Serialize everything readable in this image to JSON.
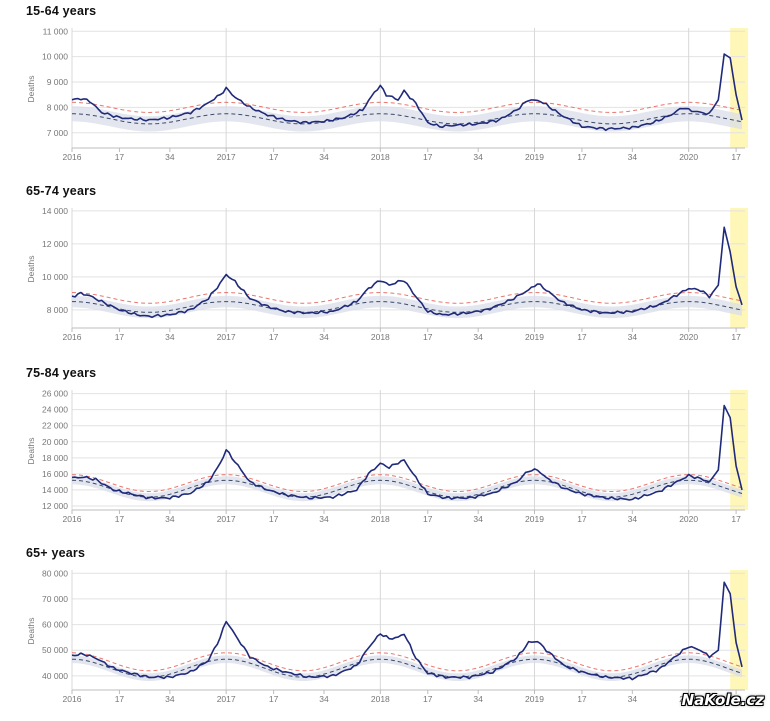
{
  "watermark": "NaKole.cz",
  "colors": {
    "observed": "#1f2a7a",
    "baseline": "#3b4a6b",
    "threshold": "#e8776f",
    "band": "#d9dde8",
    "highlight": "#fff7b8",
    "grid": "#e2e2e2"
  },
  "x_axis": {
    "start": "2016-W01",
    "end": "2020-W18",
    "ticks": [
      {
        "week": 0,
        "label": "2016"
      },
      {
        "week": 16,
        "label": "17"
      },
      {
        "week": 33,
        "label": "34"
      },
      {
        "week": 52,
        "label": "2017"
      },
      {
        "week": 68,
        "label": "17"
      },
      {
        "week": 85,
        "label": "34"
      },
      {
        "week": 104,
        "label": "2018"
      },
      {
        "week": 120,
        "label": "17"
      },
      {
        "week": 137,
        "label": "34"
      },
      {
        "week": 156,
        "label": "2019"
      },
      {
        "week": 172,
        "label": "17"
      },
      {
        "week": 189,
        "label": "34"
      },
      {
        "week": 208,
        "label": "2020"
      },
      {
        "week": 224,
        "label": "17"
      }
    ],
    "highlight_weeks": [
      222,
      226
    ]
  },
  "chart_data": [
    {
      "type": "line",
      "title": "15-64 years",
      "ylabel": "Deaths",
      "ylim": [
        6400,
        11050
      ],
      "yticks": [
        {
          "v": 7000,
          "label": "7 000"
        },
        {
          "v": 8000,
          "label": "8 000"
        },
        {
          "v": 9000,
          "label": "9 000"
        },
        {
          "v": 10000,
          "label": "10 000"
        },
        {
          "v": 11000,
          "label": "11 000"
        }
      ],
      "baseline": {
        "winter": 7750,
        "summer": 7350
      },
      "threshold_offset": 450,
      "band_halfwidth": 300,
      "observed_keypoints": [
        [
          0,
          8300
        ],
        [
          3,
          8350
        ],
        [
          6,
          8250
        ],
        [
          10,
          7800
        ],
        [
          16,
          7600
        ],
        [
          20,
          7550
        ],
        [
          26,
          7500
        ],
        [
          33,
          7600
        ],
        [
          40,
          7800
        ],
        [
          45,
          8100
        ],
        [
          50,
          8500
        ],
        [
          52,
          8750
        ],
        [
          55,
          8400
        ],
        [
          60,
          8000
        ],
        [
          66,
          7700
        ],
        [
          72,
          7500
        ],
        [
          78,
          7400
        ],
        [
          85,
          7450
        ],
        [
          92,
          7600
        ],
        [
          98,
          7900
        ],
        [
          102,
          8600
        ],
        [
          104,
          8850
        ],
        [
          106,
          8500
        ],
        [
          110,
          8300
        ],
        [
          112,
          8650
        ],
        [
          116,
          8150
        ],
        [
          120,
          7400
        ],
        [
          124,
          7250
        ],
        [
          130,
          7300
        ],
        [
          137,
          7350
        ],
        [
          144,
          7500
        ],
        [
          150,
          7900
        ],
        [
          154,
          8300
        ],
        [
          158,
          8250
        ],
        [
          160,
          8100
        ],
        [
          165,
          7700
        ],
        [
          172,
          7250
        ],
        [
          180,
          7150
        ],
        [
          189,
          7200
        ],
        [
          196,
          7400
        ],
        [
          202,
          7700
        ],
        [
          206,
          8000
        ],
        [
          208,
          7900
        ],
        [
          212,
          7800
        ],
        [
          215,
          7750
        ],
        [
          218,
          8300
        ],
        [
          220,
          10100
        ],
        [
          222,
          9950
        ],
        [
          224,
          8500
        ],
        [
          226,
          7500
        ]
      ]
    },
    {
      "type": "line",
      "title": "65-74 years",
      "ylabel": "Deaths",
      "ylim": [
        6900,
        14050
      ],
      "yticks": [
        {
          "v": 8000,
          "label": "8 000"
        },
        {
          "v": 10000,
          "label": "10 000"
        },
        {
          "v": 12000,
          "label": "12 000"
        },
        {
          "v": 14000,
          "label": "14 000"
        }
      ],
      "baseline": {
        "winter": 8500,
        "summer": 7850
      },
      "threshold_offset": 550,
      "band_halfwidth": 350,
      "observed_keypoints": [
        [
          0,
          8800
        ],
        [
          3,
          9000
        ],
        [
          6,
          8850
        ],
        [
          10,
          8500
        ],
        [
          16,
          8000
        ],
        [
          22,
          7700
        ],
        [
          26,
          7600
        ],
        [
          33,
          7700
        ],
        [
          40,
          8000
        ],
        [
          46,
          8700
        ],
        [
          50,
          9600
        ],
        [
          52,
          10150
        ],
        [
          55,
          9700
        ],
        [
          60,
          8700
        ],
        [
          66,
          8200
        ],
        [
          72,
          7900
        ],
        [
          80,
          7800
        ],
        [
          88,
          7900
        ],
        [
          96,
          8500
        ],
        [
          100,
          9300
        ],
        [
          104,
          9800
        ],
        [
          107,
          9500
        ],
        [
          110,
          9700
        ],
        [
          112,
          9800
        ],
        [
          116,
          8800
        ],
        [
          120,
          7900
        ],
        [
          125,
          7700
        ],
        [
          133,
          7800
        ],
        [
          140,
          8000
        ],
        [
          148,
          8600
        ],
        [
          154,
          9200
        ],
        [
          157,
          9600
        ],
        [
          160,
          9200
        ],
        [
          165,
          8500
        ],
        [
          172,
          8000
        ],
        [
          180,
          7800
        ],
        [
          189,
          7900
        ],
        [
          198,
          8300
        ],
        [
          204,
          8900
        ],
        [
          208,
          9300
        ],
        [
          212,
          9200
        ],
        [
          215,
          8800
        ],
        [
          218,
          9500
        ],
        [
          220,
          13000
        ],
        [
          222,
          11500
        ],
        [
          224,
          9400
        ],
        [
          226,
          8300
        ]
      ]
    },
    {
      "type": "line",
      "title": "75-84 years",
      "ylabel": "Deaths",
      "ylim": [
        11500,
        26200
      ],
      "yticks": [
        {
          "v": 12000,
          "label": "12 000"
        },
        {
          "v": 14000,
          "label": "14 000"
        },
        {
          "v": 16000,
          "label": "16 000"
        },
        {
          "v": 18000,
          "label": "18 000"
        },
        {
          "v": 20000,
          "label": "20 000"
        },
        {
          "v": 22000,
          "label": "22 000"
        },
        {
          "v": 24000,
          "label": "24 000"
        },
        {
          "v": 26000,
          "label": "26 000"
        }
      ],
      "baseline": {
        "winter": 15200,
        "summer": 13100
      },
      "threshold_offset": 700,
      "band_halfwidth": 500,
      "observed_keypoints": [
        [
          0,
          15500
        ],
        [
          4,
          15600
        ],
        [
          8,
          15300
        ],
        [
          14,
          14000
        ],
        [
          20,
          13500
        ],
        [
          26,
          13000
        ],
        [
          33,
          13000
        ],
        [
          40,
          13600
        ],
        [
          46,
          15000
        ],
        [
          50,
          17300
        ],
        [
          52,
          19000
        ],
        [
          55,
          17500
        ],
        [
          60,
          15000
        ],
        [
          66,
          14000
        ],
        [
          72,
          13400
        ],
        [
          80,
          13000
        ],
        [
          88,
          13100
        ],
        [
          96,
          14000
        ],
        [
          100,
          16000
        ],
        [
          104,
          17300
        ],
        [
          107,
          16800
        ],
        [
          110,
          17400
        ],
        [
          112,
          17700
        ],
        [
          116,
          15500
        ],
        [
          120,
          13500
        ],
        [
          126,
          13000
        ],
        [
          134,
          13000
        ],
        [
          142,
          13600
        ],
        [
          150,
          15000
        ],
        [
          154,
          16400
        ],
        [
          157,
          16500
        ],
        [
          160,
          15500
        ],
        [
          166,
          14200
        ],
        [
          172,
          13500
        ],
        [
          180,
          13000
        ],
        [
          189,
          12800
        ],
        [
          198,
          13800
        ],
        [
          204,
          15000
        ],
        [
          208,
          15800
        ],
        [
          212,
          15400
        ],
        [
          215,
          15000
        ],
        [
          218,
          16500
        ],
        [
          220,
          24500
        ],
        [
          222,
          23000
        ],
        [
          224,
          17000
        ],
        [
          226,
          14000
        ]
      ]
    },
    {
      "type": "line",
      "title": "65+ years",
      "ylabel": "Deaths",
      "ylim": [
        34500,
        80500
      ],
      "yticks": [
        {
          "v": 40000,
          "label": "40 000"
        },
        {
          "v": 50000,
          "label": "50 000"
        },
        {
          "v": 60000,
          "label": "60 000"
        },
        {
          "v": 70000,
          "label": "70 000"
        },
        {
          "v": 80000,
          "label": "80 000"
        }
      ],
      "baseline": {
        "winter": 46500,
        "summer": 39500
      },
      "threshold_offset": 2500,
      "band_halfwidth": 1500,
      "observed_keypoints": [
        [
          0,
          48000
        ],
        [
          4,
          48500
        ],
        [
          8,
          47000
        ],
        [
          14,
          43000
        ],
        [
          20,
          41000
        ],
        [
          26,
          39500
        ],
        [
          33,
          39500
        ],
        [
          40,
          41500
        ],
        [
          46,
          46000
        ],
        [
          50,
          55000
        ],
        [
          52,
          61500
        ],
        [
          55,
          56000
        ],
        [
          60,
          47500
        ],
        [
          66,
          43500
        ],
        [
          72,
          41500
        ],
        [
          80,
          39500
        ],
        [
          88,
          40000
        ],
        [
          96,
          44000
        ],
        [
          100,
          51000
        ],
        [
          104,
          56500
        ],
        [
          107,
          54500
        ],
        [
          110,
          55000
        ],
        [
          112,
          56500
        ],
        [
          116,
          47000
        ],
        [
          120,
          41000
        ],
        [
          126,
          39500
        ],
        [
          134,
          39500
        ],
        [
          142,
          41500
        ],
        [
          150,
          47000
        ],
        [
          154,
          53000
        ],
        [
          157,
          53500
        ],
        [
          160,
          50000
        ],
        [
          166,
          44000
        ],
        [
          172,
          41500
        ],
        [
          180,
          39500
        ],
        [
          189,
          39000
        ],
        [
          198,
          42500
        ],
        [
          204,
          48000
        ],
        [
          208,
          51500
        ],
        [
          212,
          50000
        ],
        [
          215,
          47500
        ],
        [
          218,
          50000
        ],
        [
          220,
          76500
        ],
        [
          222,
          72000
        ],
        [
          224,
          53000
        ],
        [
          226,
          43500
        ]
      ]
    }
  ]
}
